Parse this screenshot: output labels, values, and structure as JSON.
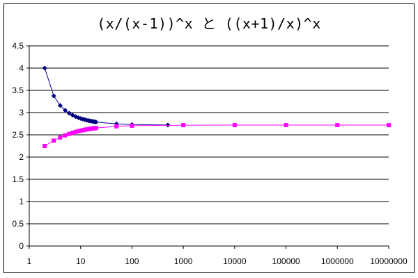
{
  "chart_data": {
    "type": "line",
    "title": "(x/(x-1))^x と ((x+1)/x)^x",
    "x_scale": "log",
    "xlim": [
      1,
      10000000
    ],
    "ylim": [
      0,
      4.5
    ],
    "x_ticks": [
      1,
      10,
      100,
      1000,
      10000,
      100000,
      1000000,
      10000000
    ],
    "x_tick_labels": [
      "1",
      "10",
      "100",
      "1000",
      "10000",
      "100000",
      "1000000",
      "10000000"
    ],
    "y_ticks": [
      0,
      0.5,
      1,
      1.5,
      2,
      2.5,
      3,
      3.5,
      4,
      4.5
    ],
    "y_tick_labels": [
      "0",
      "0.5",
      "1",
      "1.5",
      "2",
      "2.5",
      "3",
      "3.5",
      "4",
      "4.5"
    ],
    "grid": {
      "horizontal": true,
      "vertical": false
    },
    "legend": "none",
    "series": [
      {
        "marker": "diamond",
        "color": "#000080",
        "x": [
          2,
          3,
          4,
          5,
          6,
          7,
          8,
          9,
          10,
          11,
          12,
          13,
          14,
          15,
          16,
          17,
          18,
          19,
          20,
          50,
          100,
          500
        ],
        "values": [
          4.0,
          3.375,
          3.16,
          3.052,
          2.986,
          2.942,
          2.911,
          2.887,
          2.868,
          2.853,
          2.841,
          2.831,
          2.822,
          2.815,
          2.808,
          2.802,
          2.797,
          2.792,
          2.788,
          2.746,
          2.732,
          2.721
        ]
      },
      {
        "marker": "square",
        "color": "#ff00ff",
        "x": [
          2,
          3,
          4,
          5,
          6,
          7,
          8,
          9,
          10,
          11,
          12,
          13,
          14,
          15,
          16,
          17,
          18,
          19,
          20,
          50,
          100,
          1000,
          10000,
          100000,
          1000000,
          10000000
        ],
        "values": [
          2.25,
          2.37,
          2.441,
          2.488,
          2.522,
          2.546,
          2.566,
          2.581,
          2.594,
          2.604,
          2.613,
          2.621,
          2.627,
          2.633,
          2.638,
          2.643,
          2.647,
          2.651,
          2.653,
          2.692,
          2.705,
          2.717,
          2.718,
          2.718,
          2.718,
          2.718
        ]
      }
    ]
  }
}
